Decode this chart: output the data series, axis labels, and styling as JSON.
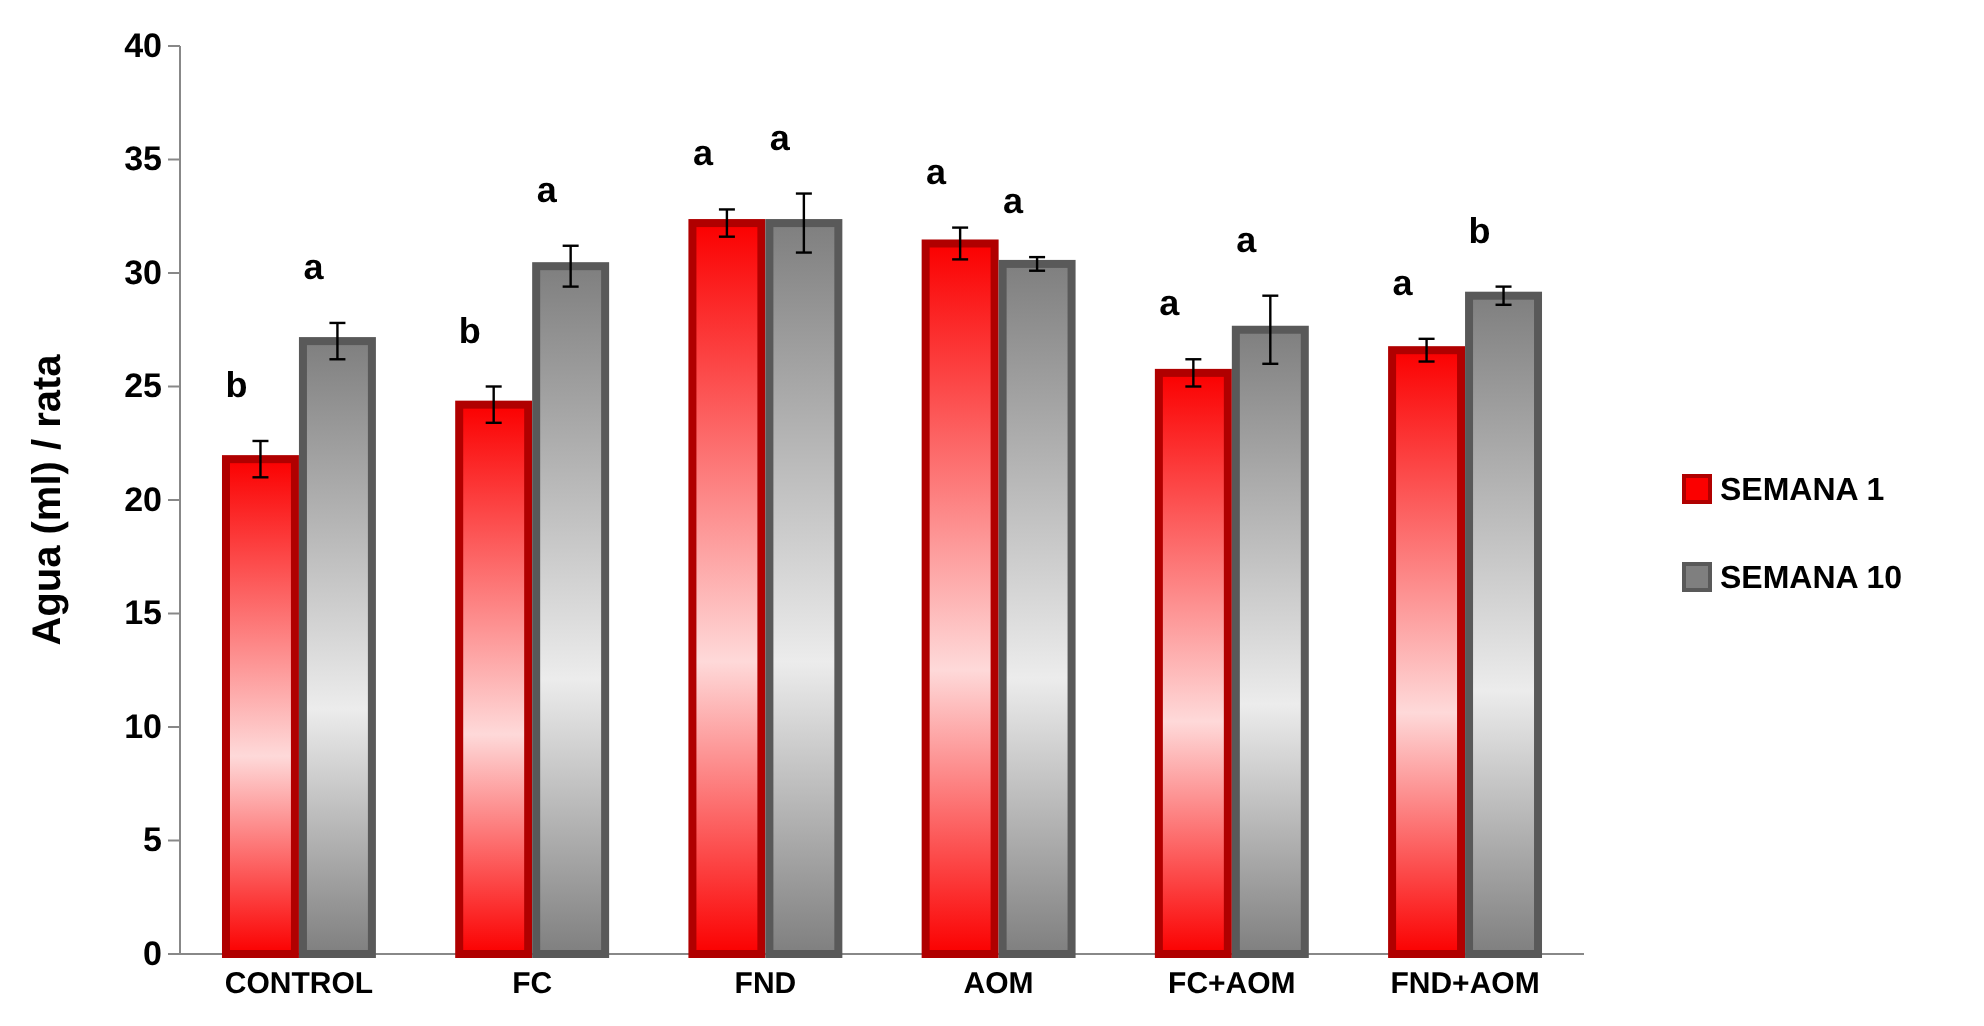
{
  "chart_data": {
    "type": "bar",
    "ylabel": "Agua (ml) / rata",
    "categories": [
      "CONTROL",
      "FC",
      "FND",
      "AOM",
      "FC+AOM",
      "FND+AOM"
    ],
    "series": [
      {
        "name": "SEMANA 1",
        "color": "#b00000",
        "values": [
          21.8,
          24.2,
          32.2,
          31.3,
          25.6,
          26.6
        ],
        "errors": [
          0.8,
          0.8,
          0.6,
          0.7,
          0.6,
          0.5
        ]
      },
      {
        "name": "SEMANA 10",
        "color": "#595959",
        "values": [
          27.0,
          30.3,
          32.2,
          30.4,
          27.5,
          29.0
        ],
        "errors": [
          0.8,
          0.9,
          1.3,
          0.3,
          1.5,
          0.4
        ]
      }
    ],
    "ylim": [
      0,
      40
    ],
    "yticks": [
      0,
      5,
      10,
      15,
      20,
      25,
      30,
      35,
      40
    ],
    "grid": false,
    "legend": "right",
    "annotations": [
      "b",
      "a",
      "b",
      "a",
      "a",
      "a",
      "a",
      "a",
      "a",
      "a",
      "a",
      "b"
    ]
  }
}
